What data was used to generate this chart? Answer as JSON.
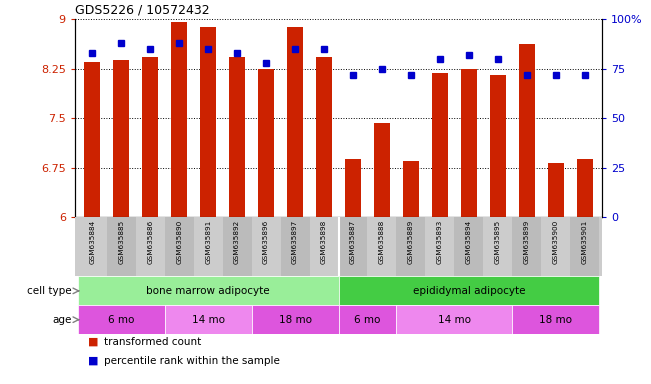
{
  "title": "GDS5226 / 10572432",
  "samples": [
    "GSM635884",
    "GSM635885",
    "GSM635886",
    "GSM635890",
    "GSM635891",
    "GSM635892",
    "GSM635896",
    "GSM635897",
    "GSM635898",
    "GSM635887",
    "GSM635888",
    "GSM635889",
    "GSM635893",
    "GSM635894",
    "GSM635895",
    "GSM635899",
    "GSM635900",
    "GSM635901"
  ],
  "bar_values": [
    8.35,
    8.38,
    8.42,
    8.95,
    8.88,
    8.42,
    8.25,
    8.88,
    8.42,
    6.88,
    7.42,
    6.85,
    8.18,
    8.25,
    8.15,
    8.62,
    6.82,
    6.88
  ],
  "percentile_values": [
    83,
    88,
    85,
    88,
    85,
    83,
    78,
    85,
    85,
    72,
    75,
    72,
    80,
    82,
    80,
    72,
    72,
    72
  ],
  "bar_color": "#cc2200",
  "percentile_color": "#0000cc",
  "ymin": 6.0,
  "ymax": 9.0,
  "yticks": [
    6.0,
    6.75,
    7.5,
    8.25,
    9.0
  ],
  "ytick_labels": [
    "6",
    "6.75",
    "7.5",
    "8.25",
    "9"
  ],
  "right_yticks": [
    0,
    25,
    50,
    75,
    100
  ],
  "right_ytick_labels": [
    "0",
    "25",
    "50",
    "75",
    "100%"
  ],
  "cell_type_groups": [
    {
      "label": "bone marrow adipocyte",
      "start": 0,
      "end": 9,
      "color": "#99ee99"
    },
    {
      "label": "epididymal adipocyte",
      "start": 9,
      "end": 18,
      "color": "#44cc44"
    }
  ],
  "age_groups": [
    {
      "label": "6 mo",
      "start": 0,
      "end": 3,
      "color": "#dd55dd"
    },
    {
      "label": "14 mo",
      "start": 3,
      "end": 6,
      "color": "#ee88ee"
    },
    {
      "label": "18 mo",
      "start": 6,
      "end": 9,
      "color": "#dd55dd"
    },
    {
      "label": "6 mo",
      "start": 9,
      "end": 11,
      "color": "#dd55dd"
    },
    {
      "label": "14 mo",
      "start": 11,
      "end": 15,
      "color": "#ee88ee"
    },
    {
      "label": "18 mo",
      "start": 15,
      "end": 18,
      "color": "#dd55dd"
    }
  ],
  "cell_type_label": "cell type",
  "age_label": "age",
  "legend_bar_label": "transformed count",
  "legend_pct_label": "percentile rank within the sample",
  "background_color": "#ffffff",
  "tick_label_color_left": "#cc2200",
  "tick_label_color_right": "#0000cc",
  "sample_strip_color": "#cccccc"
}
